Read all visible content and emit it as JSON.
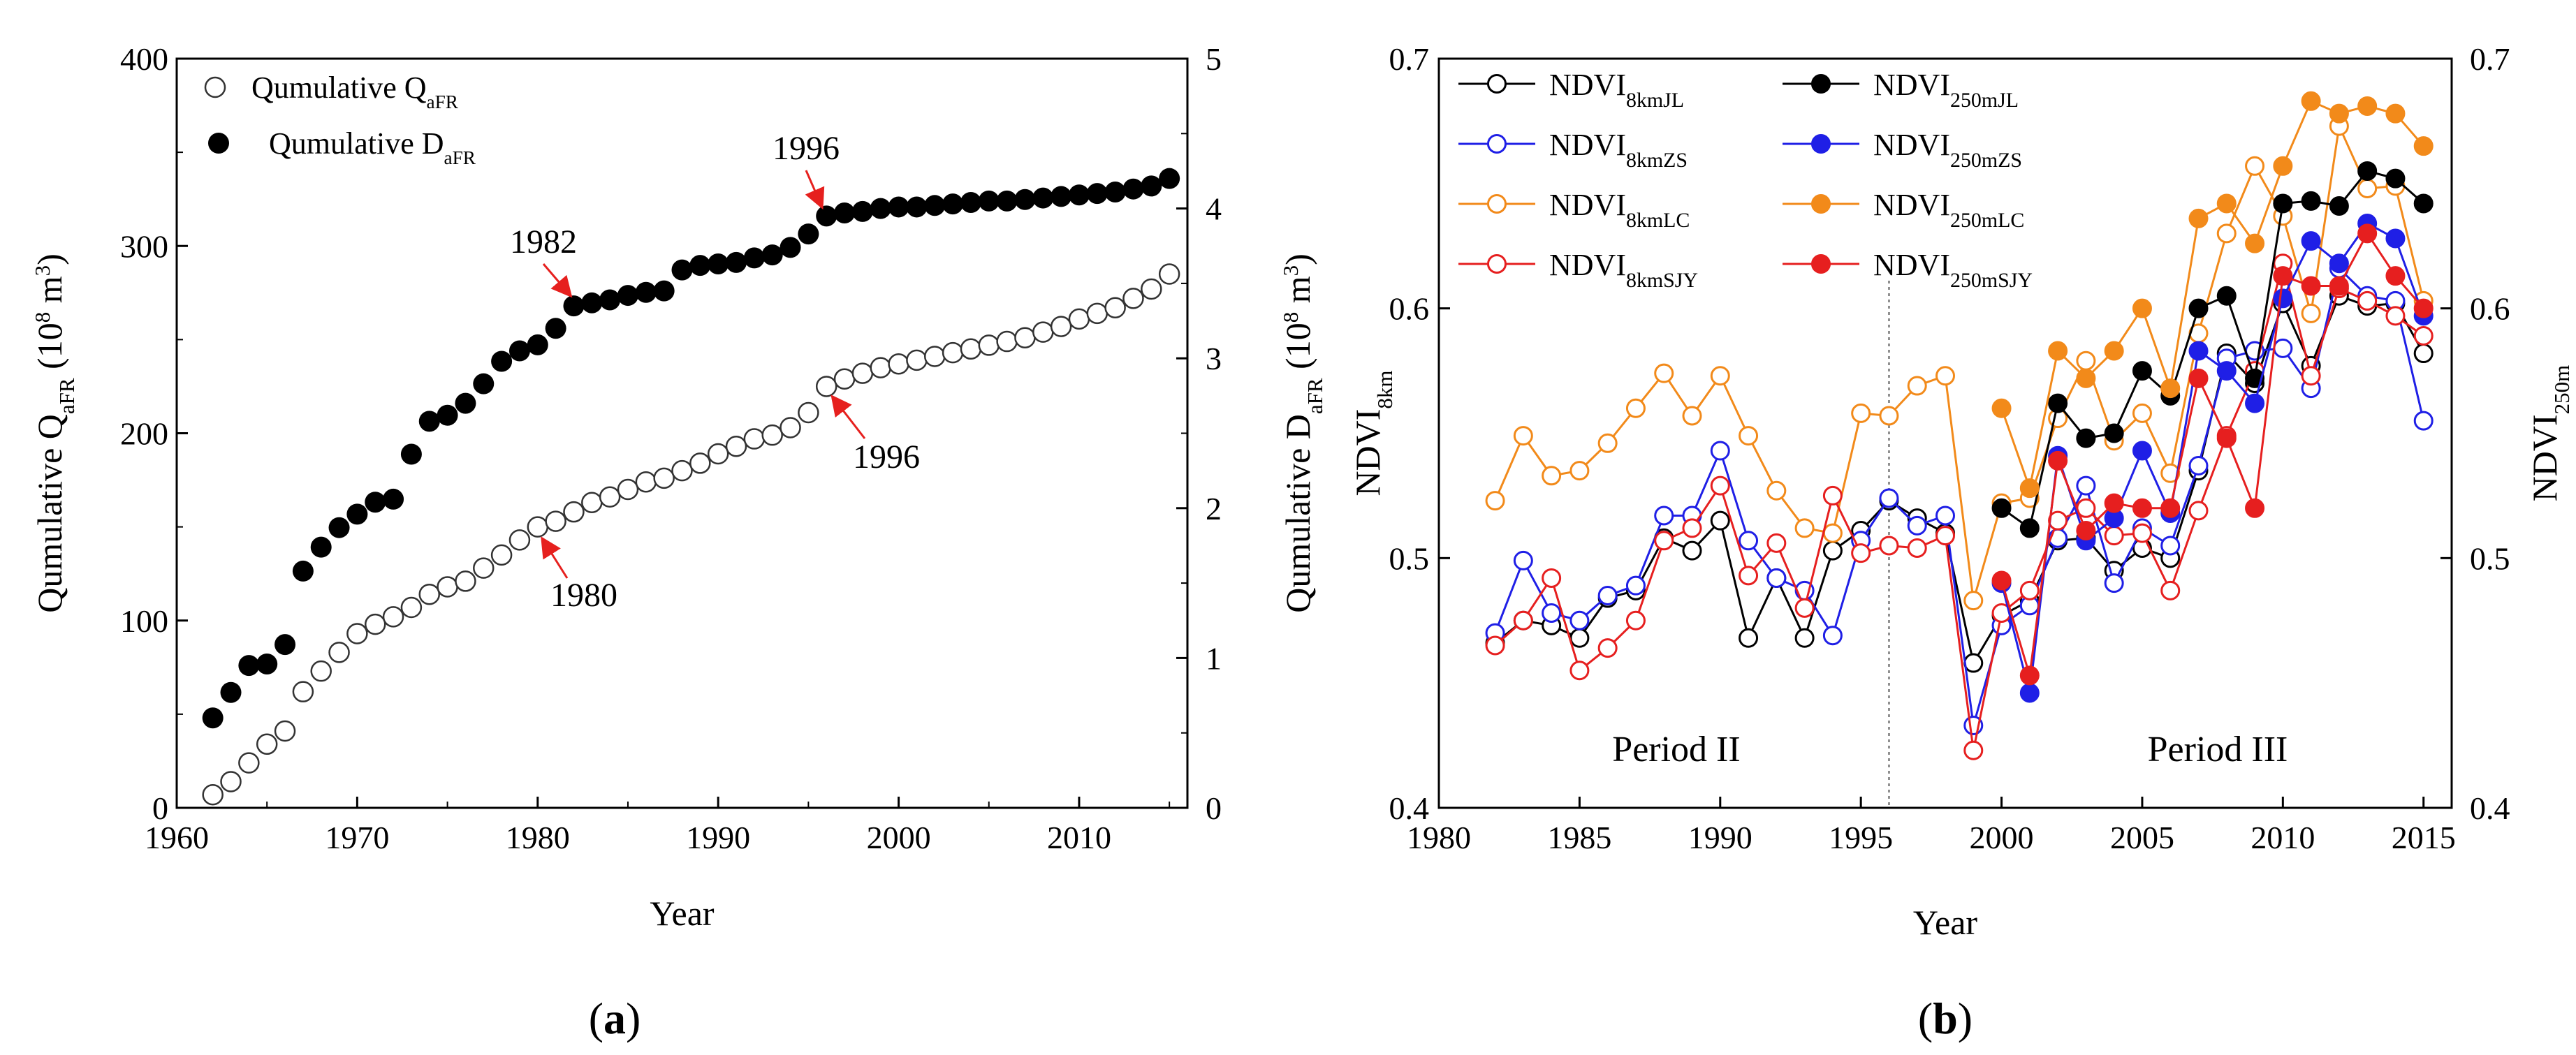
{
  "colors": {
    "black": "#000000",
    "blue": "#1f1fe6",
    "orange": "#f28a1a",
    "red": "#e61f1f",
    "arrow": "#e6201e"
  },
  "chart_data": [
    {
      "type": "scatter",
      "panel_label_parts": [
        "(",
        "a",
        ")"
      ],
      "xlabel": "Year",
      "ylabel_left_parts": [
        "Qumulative Q",
        "aFR",
        " (10",
        "8",
        " m",
        "3",
        ")"
      ],
      "ylabel_right_parts": [
        "Qumulative D",
        "aFR",
        " (10",
        "8",
        " m",
        "3",
        ")"
      ],
      "xlim": [
        1960,
        2016
      ],
      "ylim_left": [
        0,
        400
      ],
      "ylim_right": [
        0,
        5
      ],
      "xticks": [
        "1960",
        "1970",
        "1980",
        "1990",
        "2000",
        "2010"
      ],
      "yticks_left": [
        "0",
        "100",
        "200",
        "300",
        "400"
      ],
      "yticks_right": [
        "0",
        "1",
        "2",
        "3",
        "4",
        "5"
      ],
      "legend": [
        {
          "parts": [
            "Qumulative Q",
            "aFR"
          ],
          "marker": "open-circle"
        },
        {
          "parts": [
            "Qumulative D",
            "aFR"
          ],
          "marker": "filled-circle"
        }
      ],
      "annotations": [
        {
          "text": "1982",
          "series": "D",
          "year": 1982
        },
        {
          "text": "1996",
          "series": "D",
          "year": 1996
        },
        {
          "text": "1980",
          "series": "Q",
          "year": 1980
        },
        {
          "text": "1996",
          "series": "Q",
          "year": 1996
        }
      ],
      "series": [
        {
          "name": "Qumulative QaFR",
          "axis": "left",
          "marker": "open",
          "x": [
            1962,
            1963,
            1964,
            1965,
            1966,
            1967,
            1968,
            1969,
            1970,
            1971,
            1972,
            1973,
            1974,
            1975,
            1976,
            1977,
            1978,
            1979,
            1980,
            1981,
            1982,
            1983,
            1984,
            1985,
            1986,
            1987,
            1988,
            1989,
            1990,
            1991,
            1992,
            1993,
            1994,
            1995,
            1996,
            1997,
            1998,
            1999,
            2000,
            2001,
            2002,
            2003,
            2004,
            2005,
            2006,
            2007,
            2008,
            2009,
            2010,
            2011,
            2012,
            2013,
            2014,
            2015
          ],
          "y": [
            7,
            14,
            24,
            34,
            41,
            62,
            73,
            83,
            93,
            98,
            102,
            107,
            114,
            118,
            121,
            128,
            135,
            143,
            150,
            153,
            158,
            163,
            166,
            170,
            174,
            176,
            180,
            184,
            189,
            193,
            197,
            199,
            203,
            211,
            225,
            229,
            232,
            235,
            237,
            239,
            241,
            243,
            245,
            247,
            249,
            251,
            254,
            257,
            261,
            264,
            267,
            272,
            277,
            285
          ]
        },
        {
          "name": "Qumulative DaFR",
          "axis": "right",
          "marker": "filled",
          "x": [
            1962,
            1963,
            1964,
            1965,
            1966,
            1967,
            1968,
            1969,
            1970,
            1971,
            1972,
            1973,
            1974,
            1975,
            1976,
            1977,
            1978,
            1979,
            1980,
            1981,
            1982,
            1983,
            1984,
            1985,
            1986,
            1987,
            1988,
            1989,
            1990,
            1991,
            1992,
            1993,
            1994,
            1995,
            1996,
            1997,
            1998,
            1999,
            2000,
            2001,
            2002,
            2003,
            2004,
            2005,
            2006,
            2007,
            2008,
            2009,
            2010,
            2011,
            2012,
            2013,
            2014,
            2015
          ],
          "y": [
            0.6,
            0.77,
            0.95,
            0.96,
            1.09,
            1.58,
            1.74,
            1.87,
            1.96,
            2.04,
            2.06,
            2.36,
            2.58,
            2.62,
            2.7,
            2.83,
            2.98,
            3.05,
            3.09,
            3.2,
            3.35,
            3.37,
            3.39,
            3.42,
            3.44,
            3.45,
            3.59,
            3.62,
            3.63,
            3.64,
            3.67,
            3.69,
            3.74,
            3.83,
            3.95,
            3.97,
            3.98,
            4.0,
            4.01,
            4.01,
            4.02,
            4.03,
            4.04,
            4.05,
            4.05,
            4.06,
            4.07,
            4.08,
            4.09,
            4.1,
            4.11,
            4.13,
            4.15,
            4.2
          ]
        }
      ]
    },
    {
      "type": "line",
      "panel_label_parts": [
        "(",
        "b",
        ")"
      ],
      "xlabel": "Year",
      "ylabel_left_parts": [
        "NDVI",
        "8km"
      ],
      "ylabel_right_parts": [
        "NDVI",
        "250m"
      ],
      "xlim": [
        1980,
        2016
      ],
      "ylim_left": [
        0.4,
        0.7
      ],
      "ylim_right": [
        0.4,
        0.7
      ],
      "xticks": [
        "1980",
        "1985",
        "1990",
        "1995",
        "2000",
        "2005",
        "2010",
        "2015"
      ],
      "yticks_left": [
        "0.4",
        "0.5",
        "0.6",
        "0.7"
      ],
      "yticks_right": [
        "0.4",
        "0.5",
        "0.6",
        "0.7"
      ],
      "divider_year": 1996,
      "period_labels": [
        "Period  II",
        "Period III"
      ],
      "legend": [
        {
          "base": "NDVI",
          "sub": "8kmJL",
          "color": "#000000",
          "filled": false
        },
        {
          "base": "NDVI",
          "sub": "250mJL",
          "color": "#000000",
          "filled": true
        },
        {
          "base": "NDVI",
          "sub": "8kmZS",
          "color": "#1f1fe6",
          "filled": false
        },
        {
          "base": "NDVI",
          "sub": "250mZS",
          "color": "#1f1fe6",
          "filled": true
        },
        {
          "base": "NDVI",
          "sub": "8kmLC",
          "color": "#f28a1a",
          "filled": false
        },
        {
          "base": "NDVI",
          "sub": "250mLC",
          "color": "#f28a1a",
          "filled": true
        },
        {
          "base": "NDVI",
          "sub": "8kmSJY",
          "color": "#e61f1f",
          "filled": false
        },
        {
          "base": "NDVI",
          "sub": "250mSJY",
          "color": "#e61f1f",
          "filled": true
        }
      ],
      "series": [
        {
          "name": "NDVI8kmJL",
          "color": "#000000",
          "filled": false,
          "axis": "left",
          "x": [
            1982,
            1983,
            1984,
            1985,
            1986,
            1987,
            1988,
            1989,
            1990,
            1991,
            1992,
            1993,
            1994,
            1995,
            1996,
            1997,
            1998,
            1999,
            2000,
            2001,
            2002,
            2003,
            2004,
            2005,
            2006,
            2007,
            2008,
            2009,
            2010,
            2011,
            2012,
            2013,
            2014,
            2015
          ],
          "y": [
            0.466,
            0.475,
            0.473,
            0.468,
            0.484,
            0.487,
            0.508,
            0.503,
            0.515,
            0.468,
            0.492,
            0.468,
            0.503,
            0.511,
            0.523,
            0.516,
            0.51,
            0.458,
            0.477,
            0.483,
            0.507,
            0.508,
            0.495,
            0.504,
            0.5,
            0.535,
            0.582,
            0.57,
            0.602,
            0.577,
            0.605,
            0.601,
            0.602,
            0.582
          ]
        },
        {
          "name": "NDVI8kmZS",
          "color": "#1f1fe6",
          "filled": false,
          "axis": "left",
          "x": [
            1982,
            1983,
            1984,
            1985,
            1986,
            1987,
            1988,
            1989,
            1990,
            1991,
            1992,
            1993,
            1994,
            1995,
            1996,
            1997,
            1998,
            1999,
            2000,
            2001,
            2002,
            2003,
            2004,
            2005,
            2006,
            2007,
            2008,
            2009,
            2010,
            2011,
            2012,
            2013,
            2014,
            2015
          ],
          "y": [
            0.47,
            0.499,
            0.478,
            0.475,
            0.485,
            0.489,
            0.517,
            0.517,
            0.543,
            0.507,
            0.492,
            0.487,
            0.469,
            0.507,
            0.524,
            0.513,
            0.517,
            0.433,
            0.473,
            0.481,
            0.508,
            0.529,
            0.49,
            0.512,
            0.505,
            0.537,
            0.58,
            0.583,
            0.584,
            0.568,
            0.616,
            0.605,
            0.603,
            0.555
          ]
        },
        {
          "name": "NDVI8kmLC",
          "color": "#f28a1a",
          "filled": false,
          "axis": "left",
          "x": [
            1982,
            1983,
            1984,
            1985,
            1986,
            1987,
            1988,
            1989,
            1990,
            1991,
            1992,
            1993,
            1994,
            1995,
            1996,
            1997,
            1998,
            1999,
            2000,
            2001,
            2002,
            2003,
            2004,
            2005,
            2006,
            2007,
            2008,
            2009,
            2010,
            2011,
            2012,
            2013,
            2014,
            2015
          ],
          "y": [
            0.523,
            0.549,
            0.533,
            0.535,
            0.546,
            0.56,
            0.574,
            0.557,
            0.573,
            0.549,
            0.527,
            0.512,
            0.51,
            0.558,
            0.557,
            0.569,
            0.573,
            0.483,
            0.522,
            0.524,
            0.556,
            0.579,
            0.547,
            0.558,
            0.534,
            0.59,
            0.63,
            0.657,
            0.637,
            0.598,
            0.673,
            0.648,
            0.649,
            0.603
          ]
        },
        {
          "name": "NDVI8kmSJY",
          "color": "#e61f1f",
          "filled": false,
          "axis": "left",
          "x": [
            1982,
            1983,
            1984,
            1985,
            1986,
            1987,
            1988,
            1989,
            1990,
            1991,
            1992,
            1993,
            1994,
            1995,
            1996,
            1997,
            1998,
            1999,
            2000,
            2001,
            2002,
            2003,
            2004,
            2005,
            2006,
            2007,
            2008,
            2009,
            2010,
            2011,
            2012,
            2013,
            2014,
            2015
          ],
          "y": [
            0.465,
            0.475,
            0.492,
            0.455,
            0.464,
            0.475,
            0.507,
            0.512,
            0.529,
            0.493,
            0.506,
            0.48,
            0.525,
            0.502,
            0.505,
            0.504,
            0.509,
            0.423,
            0.478,
            0.487,
            0.515,
            0.52,
            0.509,
            0.51,
            0.487,
            0.519,
            0.549,
            0.575,
            0.618,
            0.573,
            0.608,
            0.603,
            0.597,
            0.589
          ]
        },
        {
          "name": "NDVI250mJL",
          "color": "#000000",
          "filled": true,
          "axis": "right",
          "x": [
            2000,
            2001,
            2002,
            2003,
            2004,
            2005,
            2006,
            2007,
            2008,
            2009,
            2010,
            2011,
            2012,
            2013,
            2014,
            2015
          ],
          "y": [
            0.52,
            0.512,
            0.562,
            0.548,
            0.55,
            0.575,
            0.565,
            0.6,
            0.605,
            0.572,
            0.642,
            0.643,
            0.641,
            0.655,
            0.652,
            0.642
          ]
        },
        {
          "name": "NDVI250mZS",
          "color": "#1f1fe6",
          "filled": true,
          "axis": "right",
          "x": [
            2000,
            2001,
            2002,
            2003,
            2004,
            2005,
            2006,
            2007,
            2008,
            2009,
            2010,
            2011,
            2012,
            2013,
            2014,
            2015
          ],
          "y": [
            0.49,
            0.446,
            0.541,
            0.507,
            0.516,
            0.543,
            0.518,
            0.583,
            0.575,
            0.562,
            0.604,
            0.627,
            0.618,
            0.634,
            0.628,
            0.597
          ]
        },
        {
          "name": "NDVI250mLC",
          "color": "#f28a1a",
          "filled": true,
          "axis": "right",
          "x": [
            2000,
            2001,
            2002,
            2003,
            2004,
            2005,
            2006,
            2007,
            2008,
            2009,
            2010,
            2011,
            2012,
            2013,
            2014,
            2015
          ],
          "y": [
            0.56,
            0.528,
            0.583,
            0.572,
            0.583,
            0.6,
            0.568,
            0.636,
            0.642,
            0.626,
            0.657,
            0.683,
            0.678,
            0.681,
            0.678,
            0.665
          ]
        },
        {
          "name": "NDVI250mSJY",
          "color": "#e61f1f",
          "filled": true,
          "axis": "right",
          "x": [
            2000,
            2001,
            2002,
            2003,
            2004,
            2005,
            2006,
            2007,
            2008,
            2009,
            2010,
            2011,
            2012,
            2013,
            2014,
            2015
          ],
          "y": [
            0.491,
            0.453,
            0.539,
            0.511,
            0.522,
            0.52,
            0.52,
            0.572,
            0.548,
            0.52,
            0.613,
            0.609,
            0.609,
            0.63,
            0.613,
            0.6
          ]
        }
      ]
    }
  ]
}
